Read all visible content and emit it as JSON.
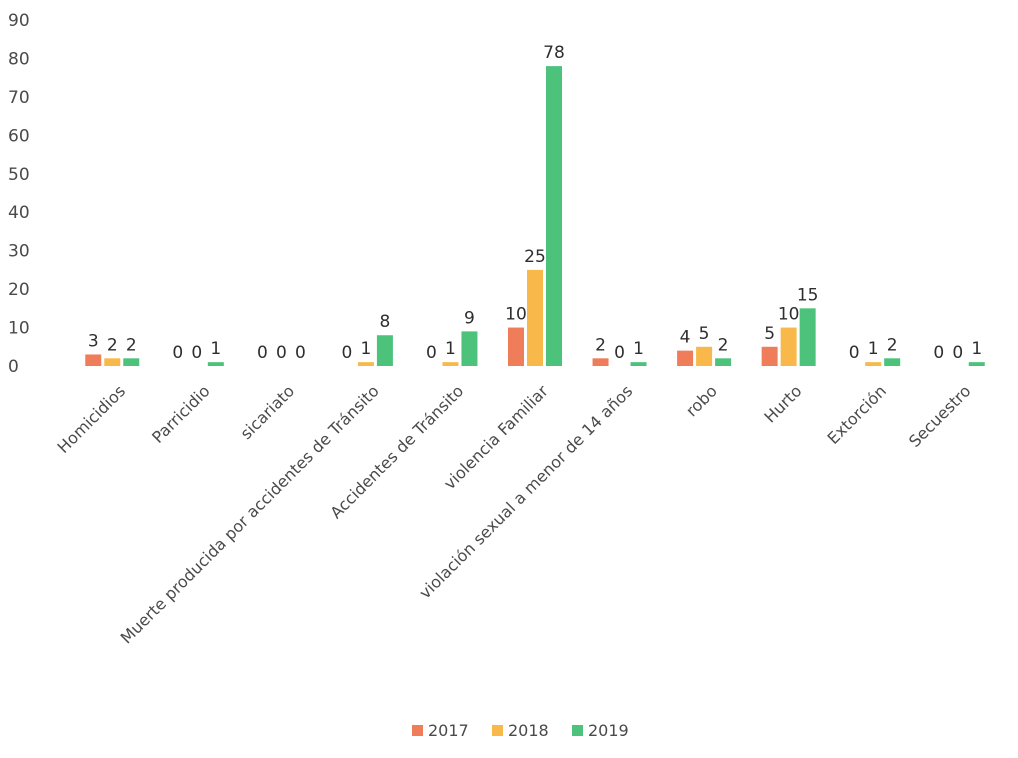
{
  "chart_data": {
    "type": "bar",
    "title": "",
    "xlabel": "",
    "ylabel": "",
    "ylim": [
      0,
      90
    ],
    "yticks": [
      0,
      10,
      20,
      30,
      40,
      50,
      60,
      70,
      80,
      90
    ],
    "grid": false,
    "legend_position": "bottom",
    "categories": [
      "Homicidios",
      "Parricidio",
      "sicariato",
      "Muerte producida por accidentes de Tránsito",
      "Accidentes de Tránsito",
      "violencia Familiar",
      "violación sexual a menor de 14 años",
      "robo",
      "Hurto",
      "Extorción",
      "Secuestro"
    ],
    "series": [
      {
        "name": "2017",
        "color": "#f07d5a",
        "values": [
          3,
          0,
          0,
          0,
          0,
          10,
          2,
          4,
          5,
          0,
          0
        ]
      },
      {
        "name": "2018",
        "color": "#f9b94a",
        "values": [
          2,
          0,
          0,
          1,
          1,
          25,
          0,
          5,
          10,
          1,
          0
        ]
      },
      {
        "name": "2019",
        "color": "#4cc27a",
        "values": [
          2,
          1,
          0,
          8,
          9,
          78,
          1,
          2,
          15,
          2,
          1
        ]
      }
    ]
  }
}
